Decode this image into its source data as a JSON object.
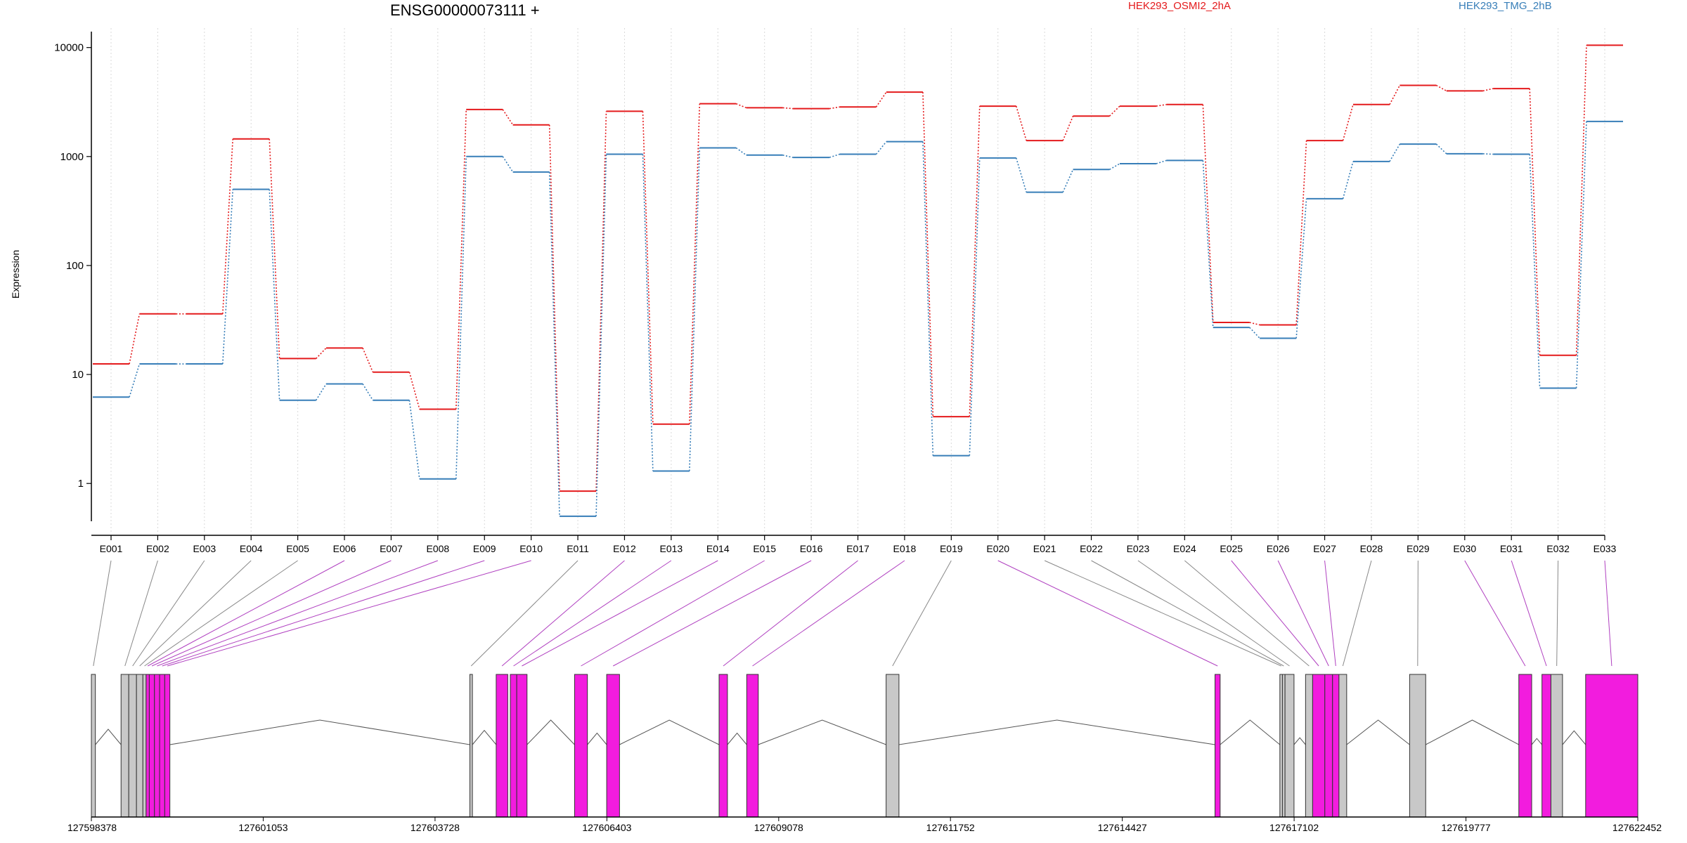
{
  "chart_data": {
    "type": "line",
    "title": "ENSG00000073111 +",
    "ylabel": "Expression",
    "xlabel": "",
    "yscale": "log",
    "ylim": [
      0.45,
      14000
    ],
    "y_ticks": [
      1,
      10,
      100,
      1000,
      10000
    ],
    "y_tick_labels": [
      "1",
      "10",
      "100",
      "1000",
      "10000"
    ],
    "grid": "vertical dotted lines at exon positions",
    "legend_placement": "top",
    "categories": [
      "E001",
      "E002",
      "E003",
      "E004",
      "E005",
      "E006",
      "E007",
      "E008",
      "E009",
      "E010",
      "E011",
      "E012",
      "E013",
      "E014",
      "E015",
      "E016",
      "E017",
      "E018",
      "E019",
      "E020",
      "E021",
      "E022",
      "E023",
      "E024",
      "E025",
      "E026",
      "E027",
      "E028",
      "E029",
      "E030",
      "E031",
      "E032",
      "E033"
    ],
    "series": [
      {
        "name": "HEK293_OSMI2_2hA",
        "color": "#e41a1c",
        "values": [
          12.5,
          36,
          36,
          1450,
          14,
          17.5,
          10.5,
          4.8,
          2700,
          1950,
          0.85,
          2600,
          3.5,
          3050,
          2800,
          2750,
          2850,
          3900,
          4.1,
          2900,
          1400,
          2350,
          2900,
          3000,
          30,
          28.5,
          1400,
          3000,
          4500,
          4000,
          4200,
          15,
          10500
        ]
      },
      {
        "name": "HEK293_TMG_2hB",
        "color": "#377eb8",
        "values": [
          6.2,
          12.5,
          12.5,
          500,
          5.8,
          8.2,
          5.8,
          1.1,
          1000,
          720,
          0.5,
          1050,
          1.3,
          1200,
          1030,
          980,
          1050,
          1370,
          1.8,
          970,
          470,
          760,
          860,
          920,
          27,
          21.5,
          410,
          900,
          1300,
          1060,
          1050,
          7.5,
          2100
        ]
      }
    ],
    "gene_model": {
      "coordinate_labels": [
        "127598378",
        "127601053",
        "127603728",
        "127606403",
        "127609078",
        "127611752",
        "127614427",
        "127617102",
        "127619777",
        "127622452"
      ],
      "exon_segments": [
        {
          "exon": "E001",
          "start": 127598378,
          "end": 127598440,
          "highlight": false
        },
        {
          "exon": "E002",
          "start": 127598840,
          "end": 127598960,
          "highlight": false
        },
        {
          "exon": "E003",
          "start": 127598960,
          "end": 127599080,
          "highlight": false
        },
        {
          "exon": "E004",
          "start": 127599080,
          "end": 127599180,
          "highlight": false
        },
        {
          "exon": "E005",
          "start": 127599180,
          "end": 127599230,
          "highlight": false
        },
        {
          "exon": "E006",
          "start": 127599230,
          "end": 127599280,
          "highlight": true
        },
        {
          "exon": "E007",
          "start": 127599280,
          "end": 127599360,
          "highlight": true
        },
        {
          "exon": "E008",
          "start": 127599360,
          "end": 127599440,
          "highlight": true
        },
        {
          "exon": "E009",
          "start": 127599440,
          "end": 127599520,
          "highlight": true
        },
        {
          "exon": "E010",
          "start": 127599520,
          "end": 127599600,
          "highlight": true
        },
        {
          "exon": "E011",
          "start": 127604270,
          "end": 127604310,
          "highlight": false
        },
        {
          "exon": "E012",
          "start": 127604680,
          "end": 127604860,
          "highlight": true
        },
        {
          "exon": "E013",
          "start": 127604900,
          "end": 127605000,
          "highlight": true
        },
        {
          "exon": "E014",
          "start": 127605000,
          "end": 127605160,
          "highlight": true
        },
        {
          "exon": "E015",
          "start": 127605900,
          "end": 127606100,
          "highlight": true
        },
        {
          "exon": "E016",
          "start": 127606400,
          "end": 127606600,
          "highlight": true
        },
        {
          "exon": "E017",
          "start": 127608150,
          "end": 127608280,
          "highlight": true
        },
        {
          "exon": "E018",
          "start": 127608580,
          "end": 127608760,
          "highlight": true
        },
        {
          "exon": "E019",
          "start": 127610750,
          "end": 127610950,
          "highlight": false
        },
        {
          "exon": "E020",
          "start": 127615870,
          "end": 127615950,
          "highlight": true
        },
        {
          "exon": "E021",
          "start": 127616880,
          "end": 127616920,
          "highlight": false
        },
        {
          "exon": "E022",
          "start": 127616920,
          "end": 127616960,
          "highlight": false
        },
        {
          "exon": "E023",
          "start": 127616960,
          "end": 127617100,
          "highlight": false
        },
        {
          "exon": "E024",
          "start": 127617280,
          "end": 127617390,
          "highlight": false
        },
        {
          "exon": "E025",
          "start": 127617390,
          "end": 127617580,
          "highlight": true
        },
        {
          "exon": "E026",
          "start": 127617580,
          "end": 127617700,
          "highlight": true
        },
        {
          "exon": "E027",
          "start": 127617700,
          "end": 127617800,
          "highlight": true
        },
        {
          "exon": "E028",
          "start": 127617800,
          "end": 127617920,
          "highlight": false
        },
        {
          "exon": "E029",
          "start": 127618900,
          "end": 127619150,
          "highlight": false
        },
        {
          "exon": "E030",
          "start": 127620600,
          "end": 127620800,
          "highlight": true
        },
        {
          "exon": "E031",
          "start": 127620960,
          "end": 127621100,
          "highlight": true
        },
        {
          "exon": "E032",
          "start": 127621100,
          "end": 127621280,
          "highlight": false
        },
        {
          "exon": "E033",
          "start": 127621640,
          "end": 127622452,
          "highlight": true
        }
      ]
    }
  }
}
